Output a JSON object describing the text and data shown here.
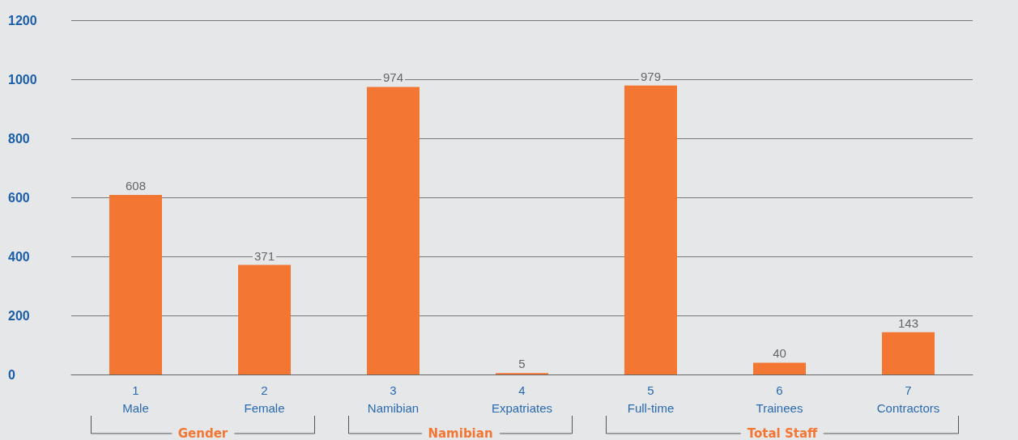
{
  "chart_data": {
    "type": "bar",
    "categories": [
      "1\nMale",
      "2\nFemale",
      "3\nNamibian",
      "4\nExpatriates",
      "5\nFull-time",
      "6\nTrainees",
      "7\nContractors"
    ],
    "values": [
      608,
      371,
      974,
      5,
      979,
      40,
      143
    ],
    "color": "#f47633",
    "ylim": [
      0,
      1200
    ],
    "yticks": [
      0,
      200,
      400,
      600,
      800,
      1000,
      1200
    ],
    "grid": "y",
    "data_labels": true,
    "annotations": [
      "Gender",
      "Namibian",
      "Total Staff"
    ]
  }
}
